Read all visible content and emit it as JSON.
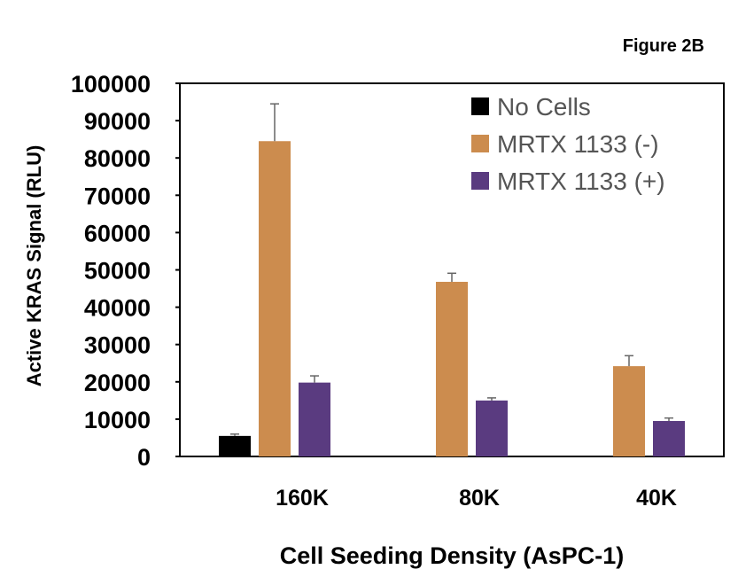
{
  "figure_label": "Figure 2B",
  "chart_data": {
    "type": "bar",
    "title": "",
    "xlabel": "Cell Seeding Density (AsPC-1)",
    "ylabel": "Active KRAS Signal (RLU)",
    "ylim": [
      0,
      100000
    ],
    "yticks": [
      0,
      10000,
      20000,
      30000,
      40000,
      50000,
      60000,
      70000,
      80000,
      90000,
      100000
    ],
    "grid": false,
    "legend_position": "top-right",
    "categories": [
      "160K",
      "80K",
      "40K"
    ],
    "series": [
      {
        "name": "No Cells",
        "color": "#000000",
        "values": [
          5500,
          null,
          null
        ],
        "errors": [
          500,
          null,
          null
        ]
      },
      {
        "name": "MRTX 1133 (-)",
        "color": "#CC8C4E",
        "values": [
          84500,
          46800,
          24200
        ],
        "errors": [
          10000,
          2300,
          2800
        ]
      },
      {
        "name": "MRTX 1133 (+)",
        "color": "#5A3B80",
        "values": [
          19800,
          15000,
          9500
        ],
        "errors": [
          1800,
          700,
          800
        ]
      }
    ]
  }
}
